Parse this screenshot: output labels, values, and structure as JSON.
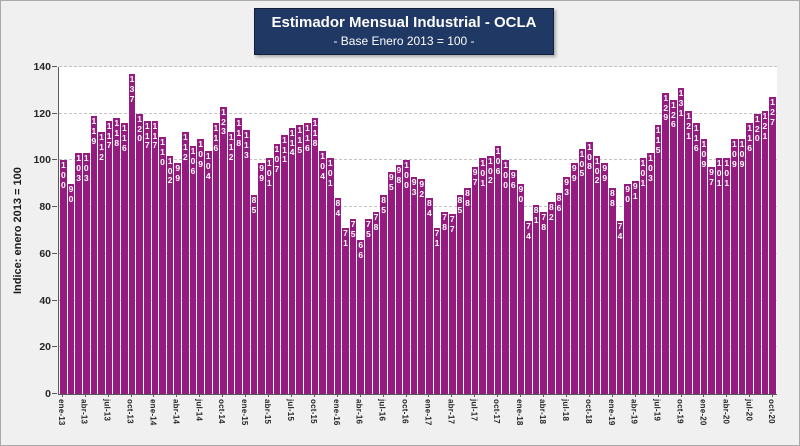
{
  "header": {
    "title": "Estimador Mensual Industrial - OCLA",
    "subtitle": "- Base Enero 2013 = 100 -"
  },
  "colors": {
    "bar": "#951b81",
    "bar_label": "#ffffff",
    "title_box_bg": "#1f3864",
    "title_text": "#ffffff",
    "plot_bg": "#ffffff",
    "page_bg": "#f1f0f0",
    "gridline": "#c3c3c3",
    "axis_line": "#595959",
    "axis_text": "#262626"
  },
  "chart_data": {
    "type": "bar",
    "title": "Estimador Mensual Industrial - OCLA",
    "subtitle": "- Base Enero 2013 = 100 -",
    "xlabel": "",
    "ylabel": "Indice: enero 2013 = 100",
    "ylim": [
      0,
      140
    ],
    "yticks": [
      0,
      20,
      40,
      60,
      80,
      100,
      120,
      140
    ],
    "grid": "horizontal-dashed",
    "legend": "none",
    "bar_labels_visible": true,
    "xtick_every": 3,
    "categories": [
      "ene-13",
      "feb-13",
      "mar-13",
      "abr-13",
      "may-13",
      "jun-13",
      "jul-13",
      "ago-13",
      "sep-13",
      "oct-13",
      "nov-13",
      "dic-13",
      "ene-14",
      "feb-14",
      "mar-14",
      "abr-14",
      "may-14",
      "jun-14",
      "jul-14",
      "ago-14",
      "sep-14",
      "oct-14",
      "nov-14",
      "dic-14",
      "ene-15",
      "feb-15",
      "mar-15",
      "abr-15",
      "may-15",
      "jun-15",
      "jul-15",
      "ago-15",
      "sep-15",
      "oct-15",
      "nov-15",
      "dic-15",
      "ene-16",
      "feb-16",
      "mar-16",
      "abr-16",
      "may-16",
      "jun-16",
      "jul-16",
      "ago-16",
      "sep-16",
      "oct-16",
      "nov-16",
      "dic-16",
      "ene-17",
      "feb-17",
      "mar-17",
      "abr-17",
      "may-17",
      "jun-17",
      "jul-17",
      "ago-17",
      "sep-17",
      "oct-17",
      "nov-17",
      "dic-17",
      "ene-18",
      "feb-18",
      "mar-18",
      "abr-18",
      "may-18",
      "jun-18",
      "jul-18",
      "ago-18",
      "sep-18",
      "oct-18",
      "nov-18",
      "dic-18",
      "ene-19",
      "feb-19",
      "mar-19",
      "abr-19",
      "may-19",
      "jun-19",
      "jul-19",
      "ago-19",
      "sep-19",
      "oct-19",
      "nov-19",
      "dic-19",
      "ene-20",
      "feb-20",
      "mar-20",
      "abr-20",
      "may-20",
      "jun-20",
      "jul-20",
      "ago-20",
      "sep-20",
      "oct-20"
    ],
    "values": [
      100,
      90,
      103,
      103,
      119,
      112,
      117,
      118,
      116,
      137,
      120,
      117,
      117,
      110,
      102,
      99,
      112,
      106,
      109,
      104,
      116,
      123,
      112,
      118,
      113,
      85,
      99,
      101,
      107,
      111,
      114,
      115,
      116,
      118,
      104,
      101,
      84,
      71,
      75,
      66,
      75,
      78,
      85,
      95,
      98,
      100,
      93,
      92,
      84,
      71,
      78,
      77,
      85,
      88,
      97,
      101,
      102,
      106,
      100,
      96,
      90,
      74,
      81,
      78,
      82,
      86,
      93,
      99,
      105,
      108,
      102,
      99,
      88,
      74,
      90,
      91,
      101,
      103,
      115,
      129,
      126,
      131,
      121,
      116,
      109,
      97,
      101,
      101,
      109,
      109,
      116,
      120,
      121,
      127
    ]
  }
}
